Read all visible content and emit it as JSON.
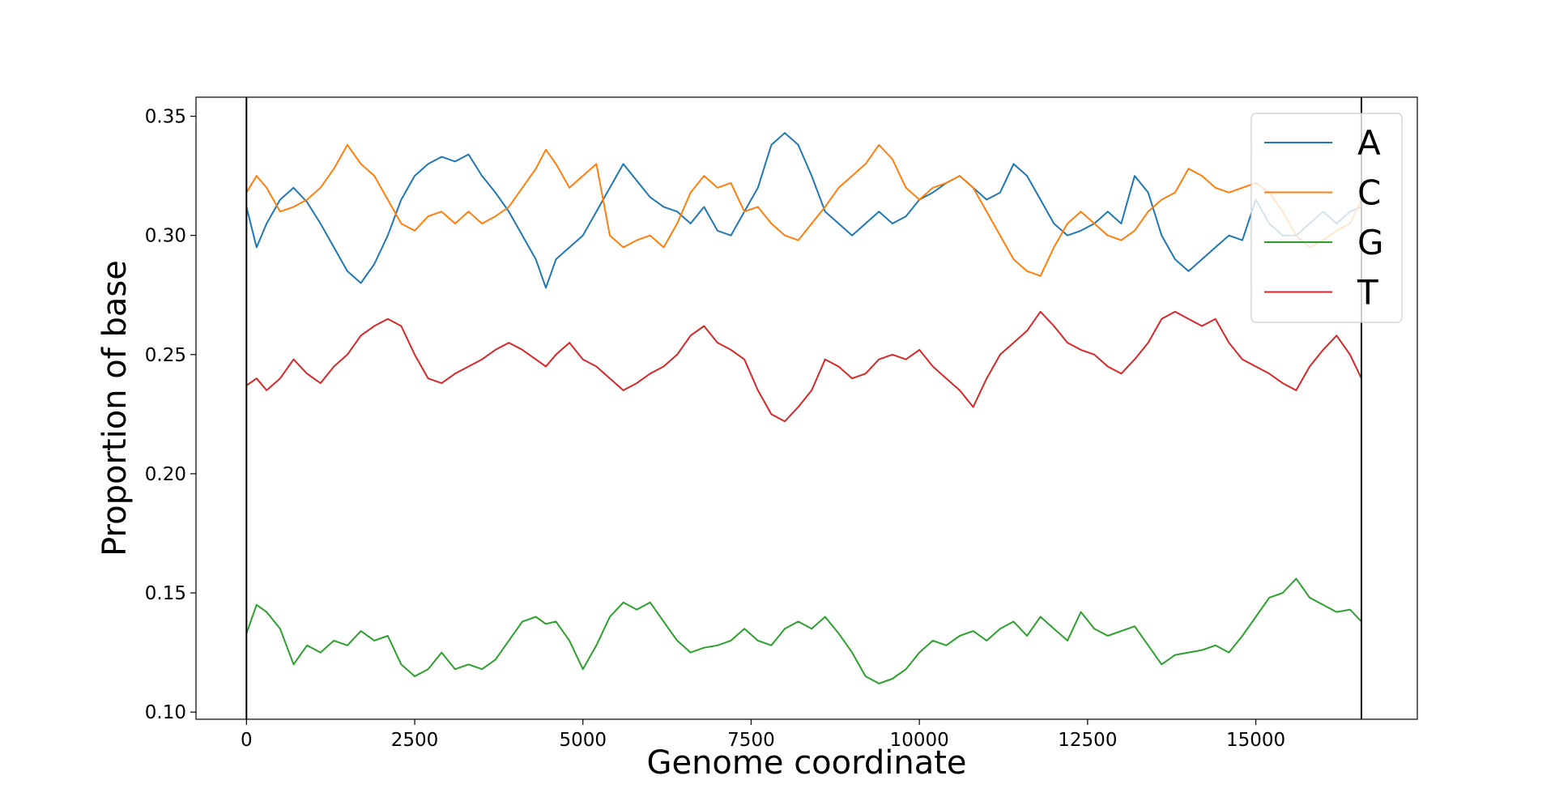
{
  "chart_data": {
    "type": "line",
    "title": "",
    "xlabel": "Genome coordinate",
    "ylabel": "Proportion of base",
    "xlim": [
      -750,
      17400
    ],
    "ylim": [
      0.097,
      0.358
    ],
    "xticks": [
      0,
      2500,
      5000,
      7500,
      10000,
      12500,
      15000
    ],
    "yticks": [
      0.1,
      0.15,
      0.2,
      0.25,
      0.3,
      0.35
    ],
    "xtick_labels": [
      "0",
      "2500",
      "5000",
      "7500",
      "10000",
      "12500",
      "15000"
    ],
    "ytick_labels": [
      "0.10",
      "0.15",
      "0.20",
      "0.25",
      "0.30",
      "0.35"
    ],
    "vlines": [
      0,
      16569
    ],
    "legend_position": "top-right",
    "grid": false,
    "series": [
      {
        "name": "A",
        "color": "#1f77b4",
        "x": [
          0,
          150,
          300,
          500,
          700,
          900,
          1100,
          1300,
          1500,
          1700,
          1900,
          2100,
          2300,
          2500,
          2700,
          2900,
          3100,
          3300,
          3500,
          3700,
          3900,
          4100,
          4300,
          4450,
          4600,
          4800,
          5000,
          5200,
          5400,
          5600,
          5800,
          6000,
          6200,
          6400,
          6600,
          6800,
          7000,
          7200,
          7400,
          7600,
          7800,
          8000,
          8200,
          8400,
          8600,
          8800,
          9000,
          9200,
          9400,
          9600,
          9800,
          10000,
          10200,
          10400,
          10600,
          10800,
          11000,
          11200,
          11400,
          11600,
          11800,
          12000,
          12200,
          12400,
          12600,
          12800,
          13000,
          13200,
          13400,
          13600,
          13800,
          14000,
          14200,
          14400,
          14600,
          14800,
          15000,
          15200,
          15400,
          15600,
          15800,
          16000,
          16200,
          16400,
          16569
        ],
        "y": [
          0.312,
          0.295,
          0.305,
          0.315,
          0.32,
          0.314,
          0.305,
          0.295,
          0.285,
          0.28,
          0.288,
          0.3,
          0.315,
          0.325,
          0.33,
          0.333,
          0.331,
          0.334,
          0.325,
          0.318,
          0.31,
          0.3,
          0.29,
          0.278,
          0.29,
          0.295,
          0.3,
          0.31,
          0.32,
          0.33,
          0.323,
          0.316,
          0.312,
          0.31,
          0.305,
          0.312,
          0.302,
          0.3,
          0.31,
          0.32,
          0.338,
          0.343,
          0.338,
          0.325,
          0.31,
          0.305,
          0.3,
          0.305,
          0.31,
          0.305,
          0.308,
          0.315,
          0.318,
          0.322,
          0.325,
          0.32,
          0.315,
          0.318,
          0.33,
          0.325,
          0.315,
          0.305,
          0.3,
          0.302,
          0.305,
          0.31,
          0.305,
          0.325,
          0.318,
          0.3,
          0.29,
          0.285,
          0.29,
          0.295,
          0.3,
          0.298,
          0.315,
          0.305,
          0.3,
          0.3,
          0.305,
          0.31,
          0.305,
          0.31,
          0.312
        ]
      },
      {
        "name": "C",
        "color": "#ff7f0e",
        "x": [
          0,
          150,
          300,
          500,
          700,
          900,
          1100,
          1300,
          1500,
          1700,
          1900,
          2100,
          2300,
          2500,
          2700,
          2900,
          3100,
          3300,
          3500,
          3700,
          3900,
          4100,
          4300,
          4450,
          4600,
          4800,
          5000,
          5200,
          5400,
          5600,
          5800,
          6000,
          6200,
          6400,
          6600,
          6800,
          7000,
          7200,
          7400,
          7600,
          7800,
          8000,
          8200,
          8400,
          8600,
          8800,
          9000,
          9200,
          9400,
          9600,
          9800,
          10000,
          10200,
          10400,
          10600,
          10800,
          11000,
          11200,
          11400,
          11600,
          11800,
          12000,
          12200,
          12400,
          12600,
          12800,
          13000,
          13200,
          13400,
          13600,
          13800,
          14000,
          14200,
          14400,
          14600,
          14800,
          15000,
          15200,
          15400,
          15600,
          15800,
          16000,
          16200,
          16400,
          16569
        ],
        "y": [
          0.318,
          0.325,
          0.32,
          0.31,
          0.312,
          0.315,
          0.32,
          0.328,
          0.338,
          0.33,
          0.325,
          0.315,
          0.305,
          0.302,
          0.308,
          0.31,
          0.305,
          0.31,
          0.305,
          0.308,
          0.312,
          0.32,
          0.328,
          0.336,
          0.33,
          0.32,
          0.325,
          0.33,
          0.3,
          0.295,
          0.298,
          0.3,
          0.295,
          0.305,
          0.318,
          0.325,
          0.32,
          0.322,
          0.31,
          0.312,
          0.305,
          0.3,
          0.298,
          0.305,
          0.312,
          0.32,
          0.325,
          0.33,
          0.338,
          0.332,
          0.32,
          0.315,
          0.32,
          0.322,
          0.325,
          0.32,
          0.31,
          0.3,
          0.29,
          0.285,
          0.283,
          0.295,
          0.305,
          0.31,
          0.305,
          0.3,
          0.298,
          0.302,
          0.31,
          0.315,
          0.318,
          0.328,
          0.325,
          0.32,
          0.318,
          0.32,
          0.322,
          0.318,
          0.31,
          0.3,
          0.295,
          0.298,
          0.302,
          0.305,
          0.315
        ]
      },
      {
        "name": "G",
        "color": "#2ca02c",
        "x": [
          0,
          150,
          300,
          500,
          700,
          900,
          1100,
          1300,
          1500,
          1700,
          1900,
          2100,
          2300,
          2500,
          2700,
          2900,
          3100,
          3300,
          3500,
          3700,
          3900,
          4100,
          4300,
          4450,
          4600,
          4800,
          5000,
          5200,
          5400,
          5600,
          5800,
          6000,
          6200,
          6400,
          6600,
          6800,
          7000,
          7200,
          7400,
          7600,
          7800,
          8000,
          8200,
          8400,
          8600,
          8800,
          9000,
          9200,
          9400,
          9600,
          9800,
          10000,
          10200,
          10400,
          10600,
          10800,
          11000,
          11200,
          11400,
          11600,
          11800,
          12000,
          12200,
          12400,
          12600,
          12800,
          13000,
          13200,
          13400,
          13600,
          13800,
          14000,
          14200,
          14400,
          14600,
          14800,
          15000,
          15200,
          15400,
          15600,
          15800,
          16000,
          16200,
          16400,
          16569
        ],
        "y": [
          0.133,
          0.145,
          0.142,
          0.135,
          0.12,
          0.128,
          0.125,
          0.13,
          0.128,
          0.134,
          0.13,
          0.132,
          0.12,
          0.115,
          0.118,
          0.125,
          0.118,
          0.12,
          0.118,
          0.122,
          0.13,
          0.138,
          0.14,
          0.137,
          0.138,
          0.13,
          0.118,
          0.128,
          0.14,
          0.146,
          0.143,
          0.146,
          0.138,
          0.13,
          0.125,
          0.127,
          0.128,
          0.13,
          0.135,
          0.13,
          0.128,
          0.135,
          0.138,
          0.135,
          0.14,
          0.133,
          0.125,
          0.115,
          0.112,
          0.114,
          0.118,
          0.125,
          0.13,
          0.128,
          0.132,
          0.134,
          0.13,
          0.135,
          0.138,
          0.132,
          0.14,
          0.135,
          0.13,
          0.142,
          0.135,
          0.132,
          0.134,
          0.136,
          0.128,
          0.12,
          0.124,
          0.125,
          0.126,
          0.128,
          0.125,
          0.132,
          0.14,
          0.148,
          0.15,
          0.156,
          0.148,
          0.145,
          0.142,
          0.143,
          0.138
        ]
      },
      {
        "name": "T",
        "color": "#d62728",
        "x": [
          0,
          150,
          300,
          500,
          700,
          900,
          1100,
          1300,
          1500,
          1700,
          1900,
          2100,
          2300,
          2500,
          2700,
          2900,
          3100,
          3300,
          3500,
          3700,
          3900,
          4100,
          4300,
          4450,
          4600,
          4800,
          5000,
          5200,
          5400,
          5600,
          5800,
          6000,
          6200,
          6400,
          6600,
          6800,
          7000,
          7200,
          7400,
          7600,
          7800,
          8000,
          8200,
          8400,
          8600,
          8800,
          9000,
          9200,
          9400,
          9600,
          9800,
          10000,
          10200,
          10400,
          10600,
          10800,
          11000,
          11200,
          11400,
          11600,
          11800,
          12000,
          12200,
          12400,
          12600,
          12800,
          13000,
          13200,
          13400,
          13600,
          13800,
          14000,
          14200,
          14400,
          14600,
          14800,
          15000,
          15200,
          15400,
          15600,
          15800,
          16000,
          16200,
          16400,
          16569
        ],
        "y": [
          0.237,
          0.24,
          0.235,
          0.24,
          0.248,
          0.242,
          0.238,
          0.245,
          0.25,
          0.258,
          0.262,
          0.265,
          0.262,
          0.25,
          0.24,
          0.238,
          0.242,
          0.245,
          0.248,
          0.252,
          0.255,
          0.252,
          0.248,
          0.245,
          0.25,
          0.255,
          0.248,
          0.245,
          0.24,
          0.235,
          0.238,
          0.242,
          0.245,
          0.25,
          0.258,
          0.262,
          0.255,
          0.252,
          0.248,
          0.235,
          0.225,
          0.222,
          0.228,
          0.235,
          0.248,
          0.245,
          0.24,
          0.242,
          0.248,
          0.25,
          0.248,
          0.252,
          0.245,
          0.24,
          0.235,
          0.228,
          0.24,
          0.25,
          0.255,
          0.26,
          0.268,
          0.262,
          0.255,
          0.252,
          0.25,
          0.245,
          0.242,
          0.248,
          0.255,
          0.265,
          0.268,
          0.265,
          0.262,
          0.265,
          0.255,
          0.248,
          0.245,
          0.242,
          0.238,
          0.235,
          0.245,
          0.252,
          0.258,
          0.25,
          0.24
        ]
      }
    ]
  }
}
